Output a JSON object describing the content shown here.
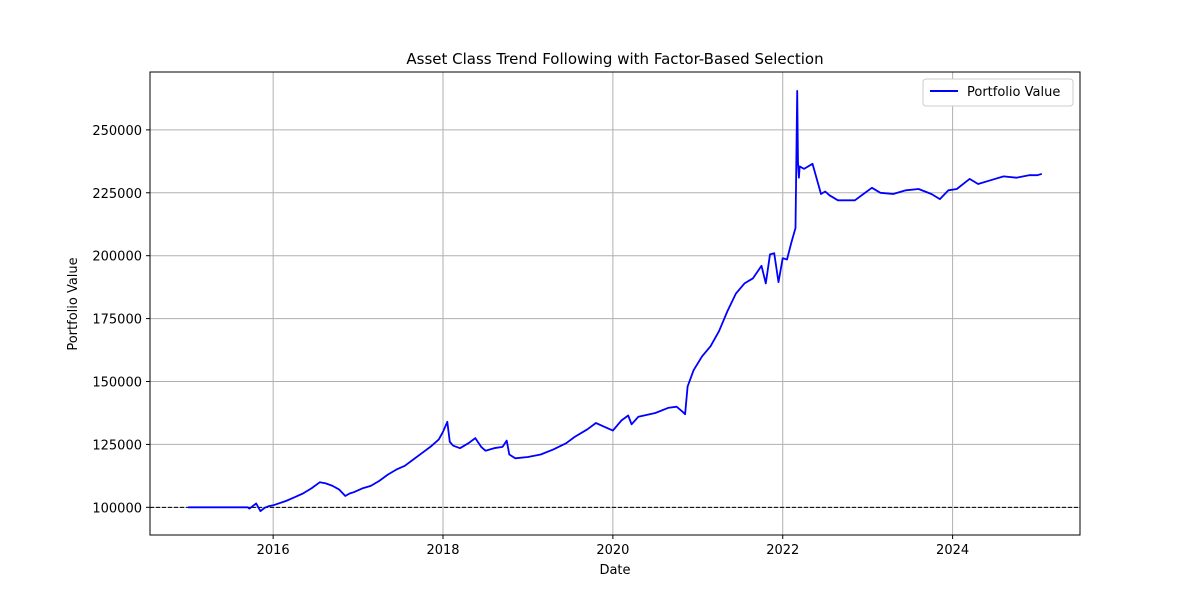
{
  "chart_data": {
    "type": "line",
    "title": "Asset Class Trend Following with Factor-Based Selection",
    "xlabel": "Date",
    "ylabel": "Portfolio Value",
    "xlim": [
      2014.55,
      2025.5
    ],
    "ylim": [
      89000,
      273000
    ],
    "grid": true,
    "legend_position": "top-right",
    "x_ticks": [
      2016,
      2018,
      2020,
      2022,
      2024
    ],
    "x_tick_labels": [
      "2016",
      "2018",
      "2020",
      "2022",
      "2024"
    ],
    "y_ticks": [
      100000,
      125000,
      150000,
      175000,
      200000,
      225000,
      250000
    ],
    "y_tick_labels": [
      "100000",
      "125000",
      "150000",
      "175000",
      "200000",
      "225000",
      "250000"
    ],
    "reference_line": {
      "y": 100000,
      "style": "dashed",
      "color": "#000000"
    },
    "series": [
      {
        "name": "Portfolio Value",
        "color": "#0000ff",
        "x": [
          2015.0,
          2015.7,
          2015.72,
          2015.8,
          2015.85,
          2015.9,
          2015.95,
          2016.0,
          2016.15,
          2016.25,
          2016.35,
          2016.45,
          2016.55,
          2016.62,
          2016.7,
          2016.78,
          2016.85,
          2016.9,
          2016.95,
          2017.05,
          2017.15,
          2017.25,
          2017.35,
          2017.45,
          2017.55,
          2017.65,
          2017.75,
          2017.85,
          2017.95,
          2018.0,
          2018.05,
          2018.08,
          2018.12,
          2018.2,
          2018.3,
          2018.38,
          2018.45,
          2018.5,
          2018.6,
          2018.7,
          2018.75,
          2018.78,
          2018.85,
          2019.0,
          2019.15,
          2019.3,
          2019.45,
          2019.55,
          2019.7,
          2019.8,
          2019.9,
          2020.0,
          2020.1,
          2020.18,
          2020.22,
          2020.3,
          2020.5,
          2020.65,
          2020.75,
          2020.82,
          2020.85,
          2020.88,
          2020.95,
          2021.05,
          2021.15,
          2021.25,
          2021.35,
          2021.45,
          2021.55,
          2021.65,
          2021.75,
          2021.8,
          2021.85,
          2021.9,
          2021.95,
          2022.0,
          2022.05,
          2022.1,
          2022.15,
          2022.17,
          2022.18,
          2022.19,
          2022.2,
          2022.25,
          2022.35,
          2022.45,
          2022.5,
          2022.55,
          2022.65,
          2022.7,
          2022.85,
          2022.95,
          2023.05,
          2023.15,
          2023.3,
          2023.45,
          2023.6,
          2023.75,
          2023.85,
          2023.95,
          2024.05,
          2024.2,
          2024.3,
          2024.45,
          2024.6,
          2024.75,
          2024.9,
          2025.0,
          2025.05
        ],
        "values": [
          100000,
          100000,
          99500,
          101500,
          98500,
          99800,
          100500,
          100800,
          102500,
          104000,
          105500,
          107500,
          110000,
          109500,
          108500,
          107000,
          104500,
          105500,
          106000,
          107500,
          108500,
          110500,
          113000,
          115000,
          116500,
          119000,
          121500,
          124000,
          127000,
          130000,
          134000,
          126000,
          124500,
          123500,
          125500,
          127500,
          124000,
          122500,
          123500,
          124000,
          126500,
          121000,
          119500,
          120000,
          121000,
          123000,
          125500,
          128000,
          131000,
          133500,
          132000,
          130500,
          134500,
          136500,
          133000,
          136000,
          137500,
          139500,
          140000,
          138000,
          137000,
          148000,
          154500,
          160000,
          164000,
          170000,
          178000,
          185000,
          189000,
          191000,
          196000,
          189000,
          200500,
          201000,
          189500,
          199000,
          198500,
          205000,
          211000,
          265500,
          237000,
          231000,
          235500,
          234500,
          236500,
          224500,
          225500,
          224000,
          222000,
          222000,
          222000,
          224500,
          227000,
          225000,
          224500,
          226000,
          226500,
          224500,
          222500,
          226000,
          226500,
          230500,
          228500,
          230000,
          231500,
          231000,
          232000,
          232000,
          232500
        ]
      }
    ]
  }
}
